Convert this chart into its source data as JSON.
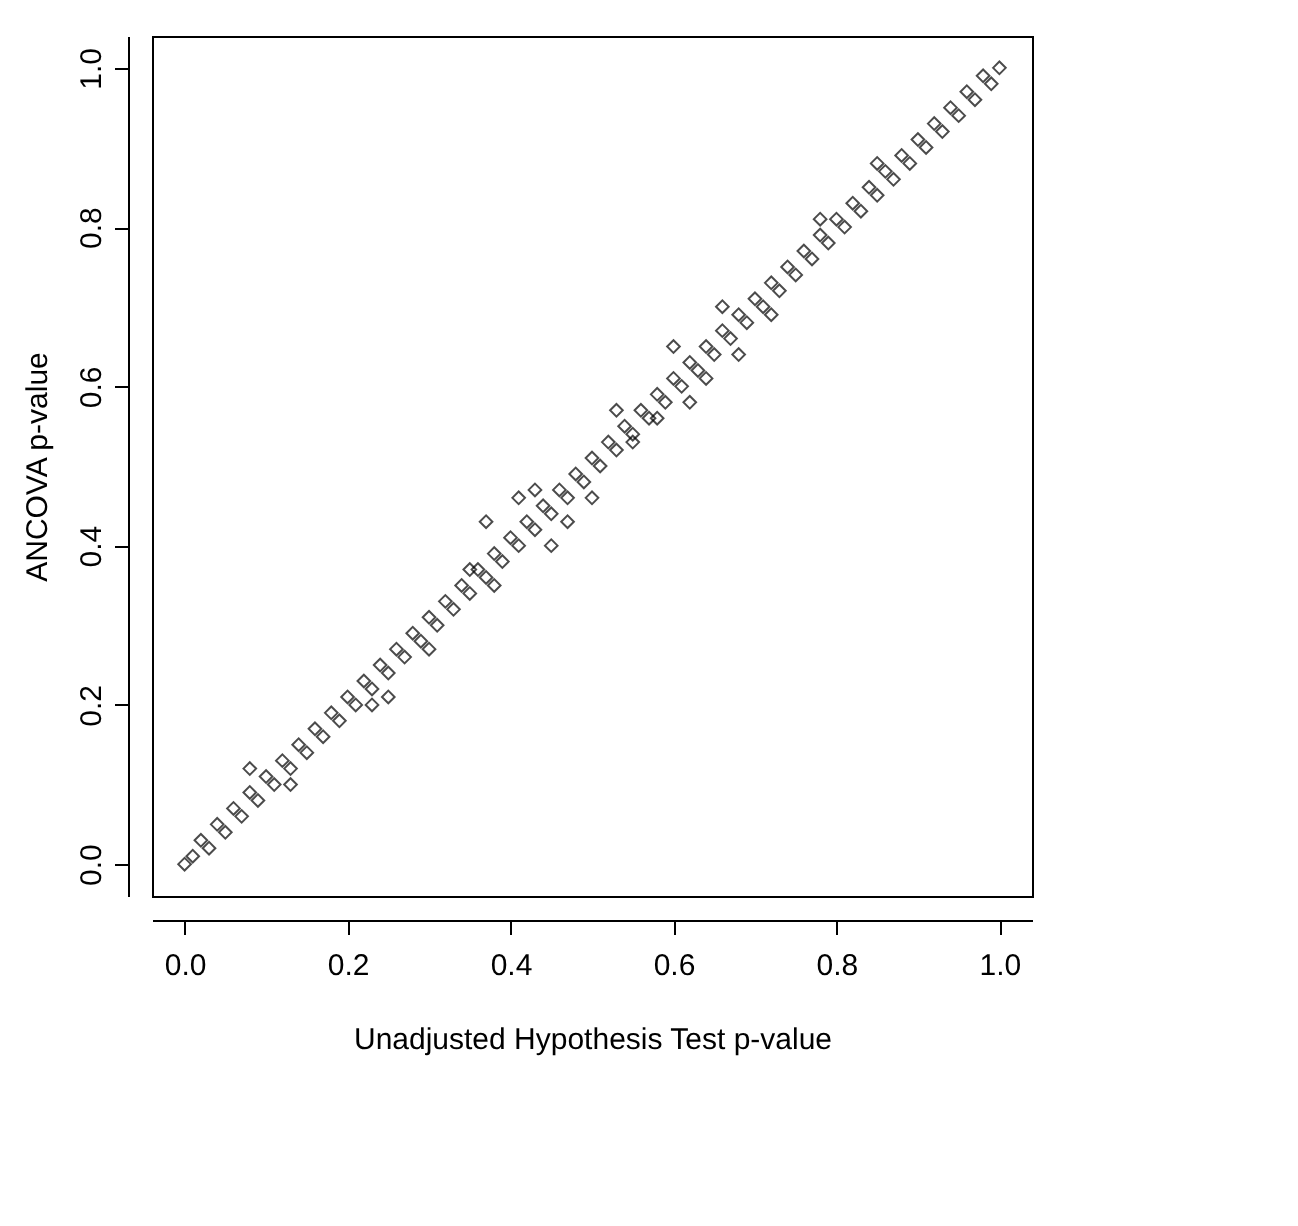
{
  "chart_data": {
    "type": "scatter",
    "xlabel": "Unadjusted Hypothesis Test p-value",
    "ylabel": "ANCOVA p-value",
    "marker": "diamond",
    "grid": false,
    "x": [
      0.0,
      0.01,
      0.02,
      0.03,
      0.04,
      0.05,
      0.06,
      0.07,
      0.08,
      0.09,
      0.1,
      0.11,
      0.12,
      0.13,
      0.14,
      0.15,
      0.16,
      0.17,
      0.18,
      0.19,
      0.2,
      0.21,
      0.22,
      0.23,
      0.24,
      0.25,
      0.26,
      0.27,
      0.28,
      0.29,
      0.3,
      0.31,
      0.32,
      0.33,
      0.34,
      0.35,
      0.36,
      0.37,
      0.38,
      0.39,
      0.4,
      0.41,
      0.42,
      0.43,
      0.44,
      0.45,
      0.46,
      0.47,
      0.48,
      0.49,
      0.5,
      0.51,
      0.52,
      0.53,
      0.54,
      0.55,
      0.56,
      0.57,
      0.58,
      0.59,
      0.6,
      0.61,
      0.62,
      0.63,
      0.64,
      0.65,
      0.66,
      0.67,
      0.68,
      0.69,
      0.7,
      0.71,
      0.72,
      0.73,
      0.74,
      0.75,
      0.76,
      0.77,
      0.78,
      0.79,
      0.8,
      0.81,
      0.82,
      0.83,
      0.84,
      0.85,
      0.86,
      0.87,
      0.88,
      0.89,
      0.9,
      0.91,
      0.92,
      0.93,
      0.94,
      0.95,
      0.96,
      0.97,
      0.98,
      0.99,
      1.0,
      0.08,
      0.13,
      0.25,
      0.35,
      0.37,
      0.38,
      0.41,
      0.45,
      0.47,
      0.53,
      0.55,
      0.58,
      0.6,
      0.62,
      0.66,
      0.68,
      0.72,
      0.78,
      0.85,
      0.23,
      0.3,
      0.5,
      0.43,
      0.64
    ],
    "values": [
      0.0,
      0.01,
      0.03,
      0.02,
      0.05,
      0.04,
      0.07,
      0.06,
      0.09,
      0.08,
      0.11,
      0.1,
      0.13,
      0.12,
      0.15,
      0.14,
      0.17,
      0.16,
      0.19,
      0.18,
      0.21,
      0.2,
      0.23,
      0.22,
      0.25,
      0.24,
      0.27,
      0.26,
      0.29,
      0.28,
      0.31,
      0.3,
      0.33,
      0.32,
      0.35,
      0.34,
      0.37,
      0.36,
      0.39,
      0.38,
      0.41,
      0.4,
      0.43,
      0.42,
      0.45,
      0.44,
      0.47,
      0.46,
      0.49,
      0.48,
      0.51,
      0.5,
      0.53,
      0.52,
      0.55,
      0.54,
      0.57,
      0.56,
      0.59,
      0.58,
      0.61,
      0.6,
      0.63,
      0.62,
      0.65,
      0.64,
      0.67,
      0.66,
      0.69,
      0.68,
      0.71,
      0.7,
      0.73,
      0.72,
      0.75,
      0.74,
      0.77,
      0.76,
      0.79,
      0.78,
      0.81,
      0.8,
      0.83,
      0.82,
      0.85,
      0.84,
      0.87,
      0.86,
      0.89,
      0.88,
      0.91,
      0.9,
      0.93,
      0.92,
      0.95,
      0.94,
      0.97,
      0.96,
      0.99,
      0.98,
      1.0,
      0.12,
      0.1,
      0.21,
      0.37,
      0.43,
      0.35,
      0.46,
      0.4,
      0.43,
      0.57,
      0.53,
      0.56,
      0.65,
      0.58,
      0.7,
      0.64,
      0.69,
      0.81,
      0.88,
      0.2,
      0.27,
      0.46,
      0.47,
      0.61
    ],
    "xlim": [
      -0.04,
      1.04
    ],
    "ylim": [
      -0.04,
      1.04
    ],
    "xticks": [
      {
        "value": 0,
        "label": "0.0"
      },
      0.2,
      0.4,
      0.6,
      0.8,
      {
        "value": 1,
        "label": "1.0"
      }
    ],
    "yticks": [
      {
        "value": 0,
        "label": "0.0"
      },
      0.2,
      0.4,
      0.6,
      0.8,
      {
        "value": 1,
        "label": "1.0"
      }
    ]
  }
}
